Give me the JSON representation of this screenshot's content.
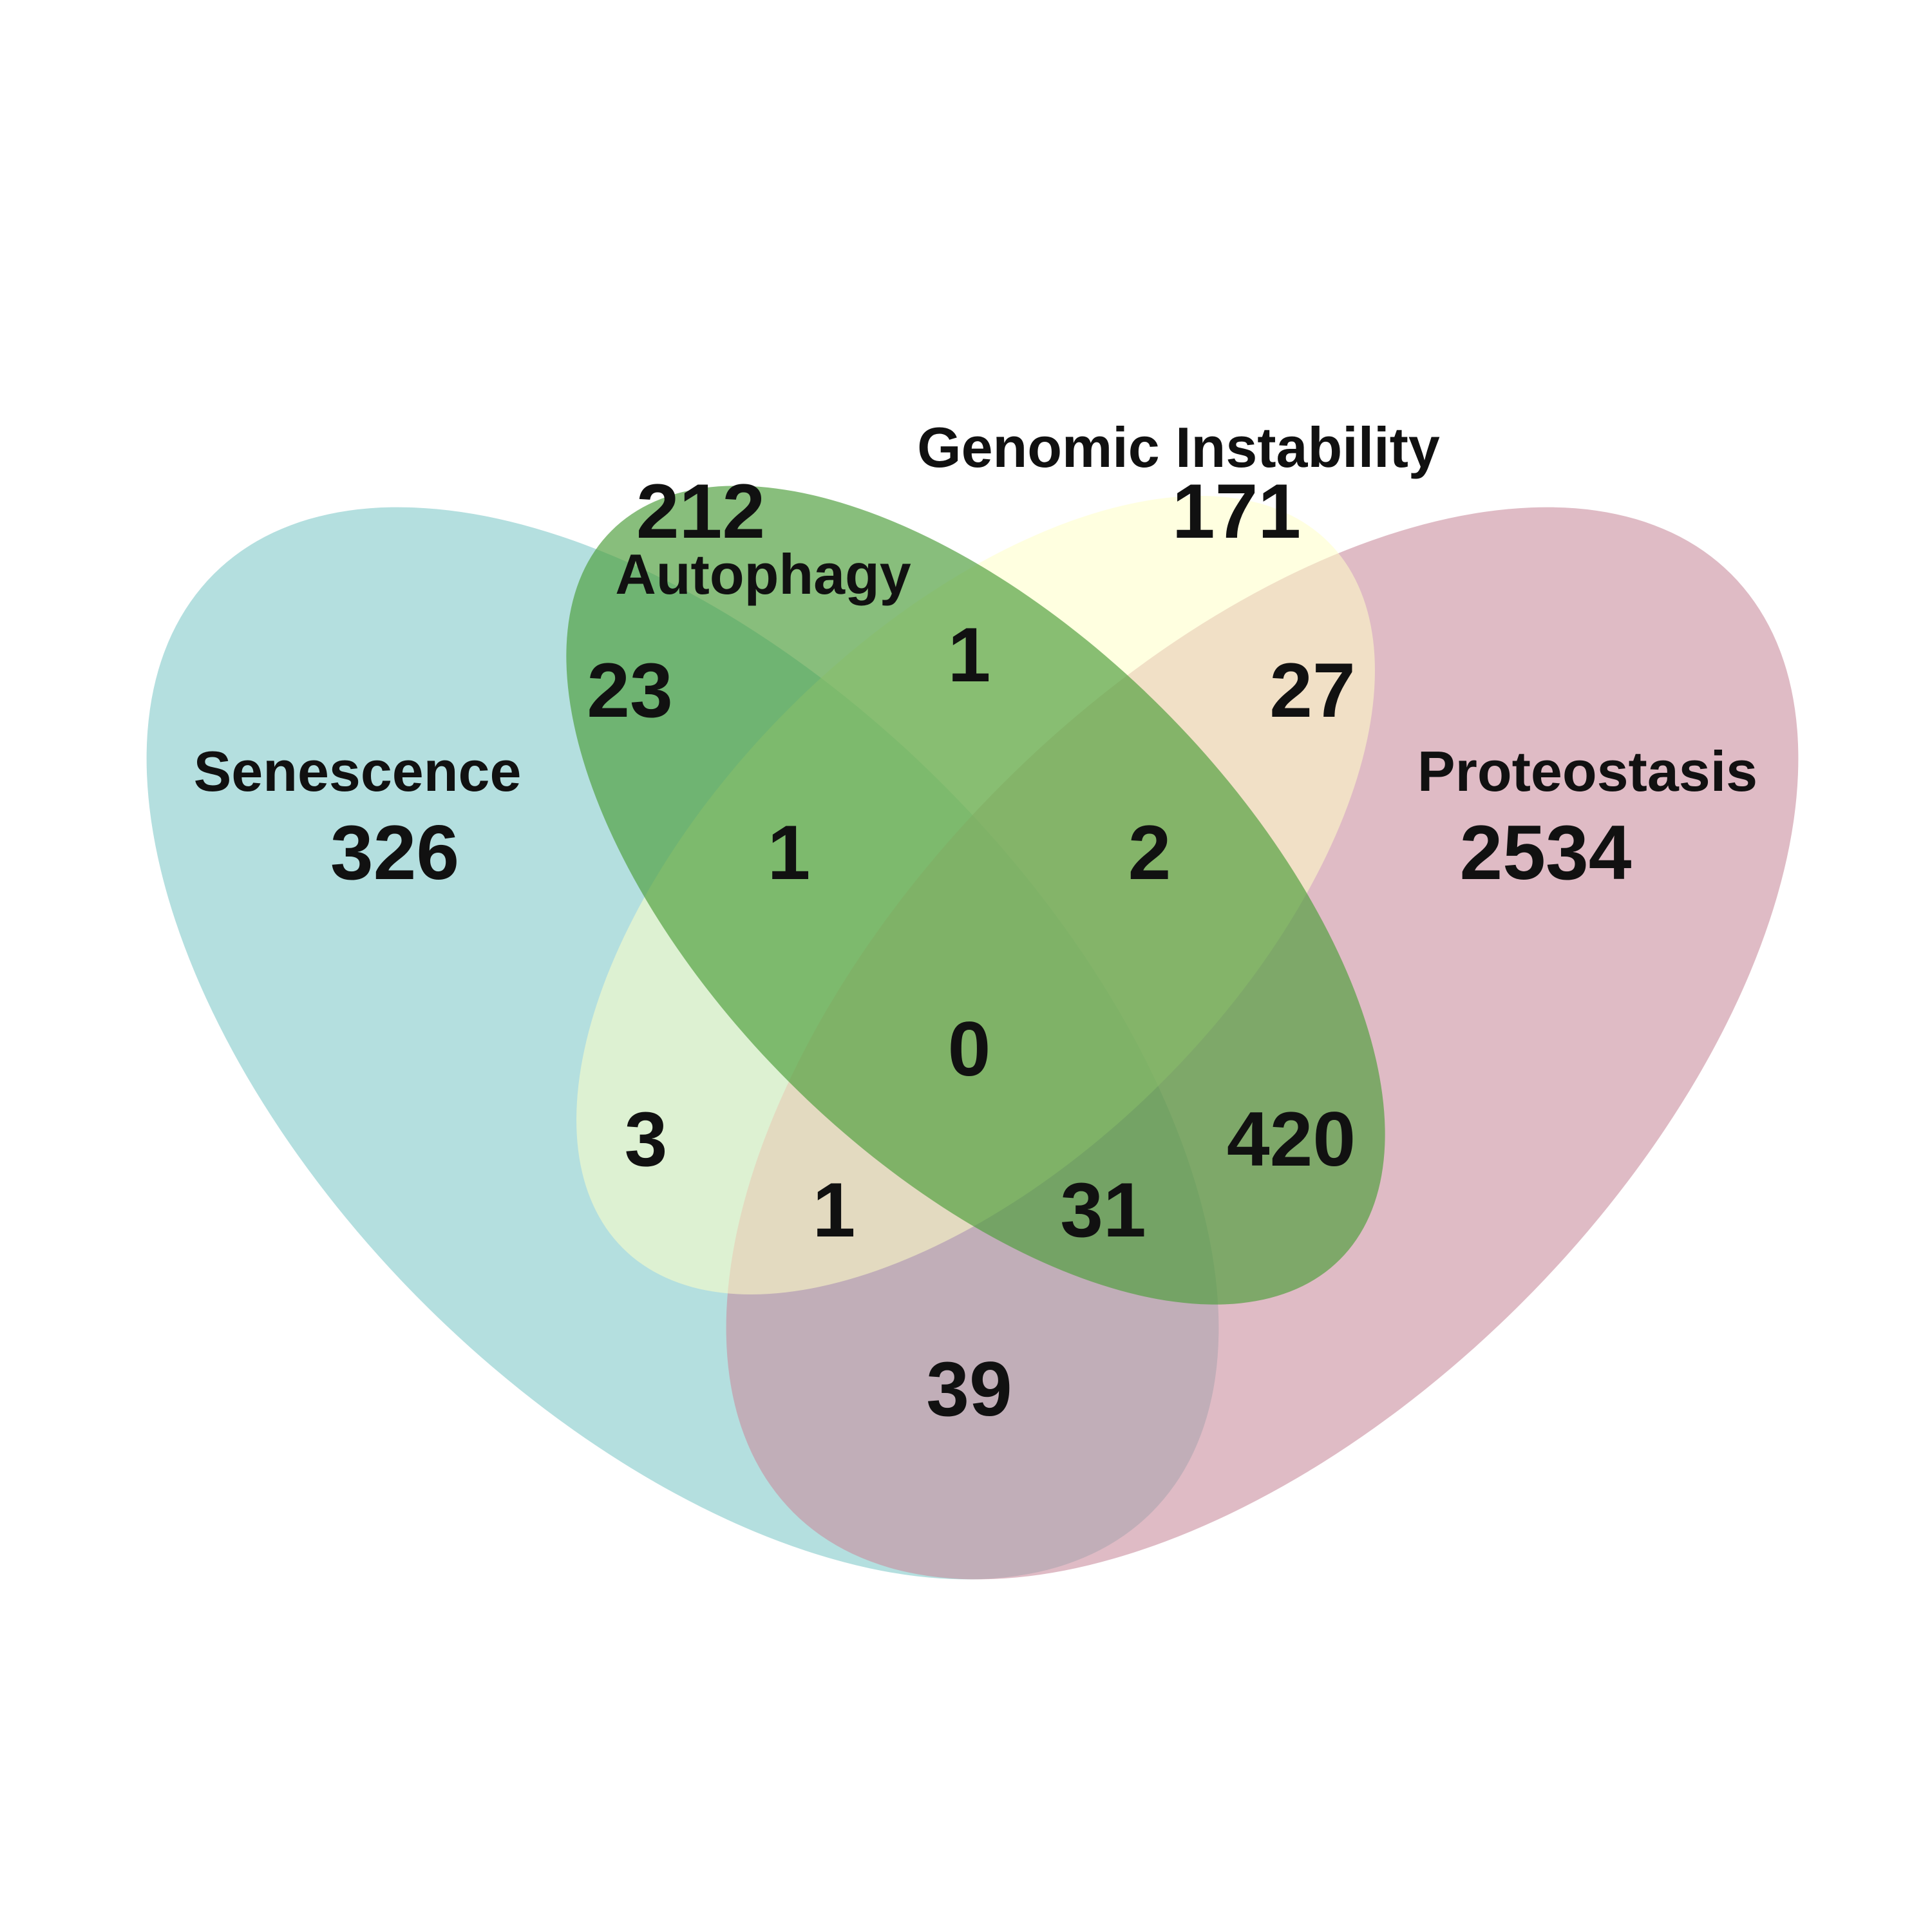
{
  "sets": [
    {
      "id": "senescence",
      "label": "Senescence",
      "color": "#86CCCB",
      "opacity": 0.62
    },
    {
      "id": "proteostasis",
      "label": "Proteostasis",
      "color": "#C98E9F",
      "opacity": 0.6
    },
    {
      "id": "genomic",
      "label": "Genomic Instability",
      "color": "#FFFFC7",
      "opacity": 0.55
    },
    {
      "id": "autophagy",
      "label": "Autophagy",
      "color": "#4E9E3C",
      "opacity": 0.67
    }
  ],
  "counts": {
    "autophagy_only": "212",
    "genomic_only": "171",
    "senescence_only": "326",
    "proteostasis_only": "2534",
    "senescence_autophagy": "23",
    "autophagy_genomic": "1",
    "genomic_proteostasis": "27",
    "senescence_autophagy_genomic": "1",
    "autophagy_genomic_proteostasis": "2",
    "all_four": "0",
    "senescence_genomic": "3",
    "senescence_genomic_proteostasis": "1",
    "senescence_autophagy_proteostasis": "31",
    "autophagy_proteostasis": "420",
    "senescence_proteostasis": "39"
  }
}
